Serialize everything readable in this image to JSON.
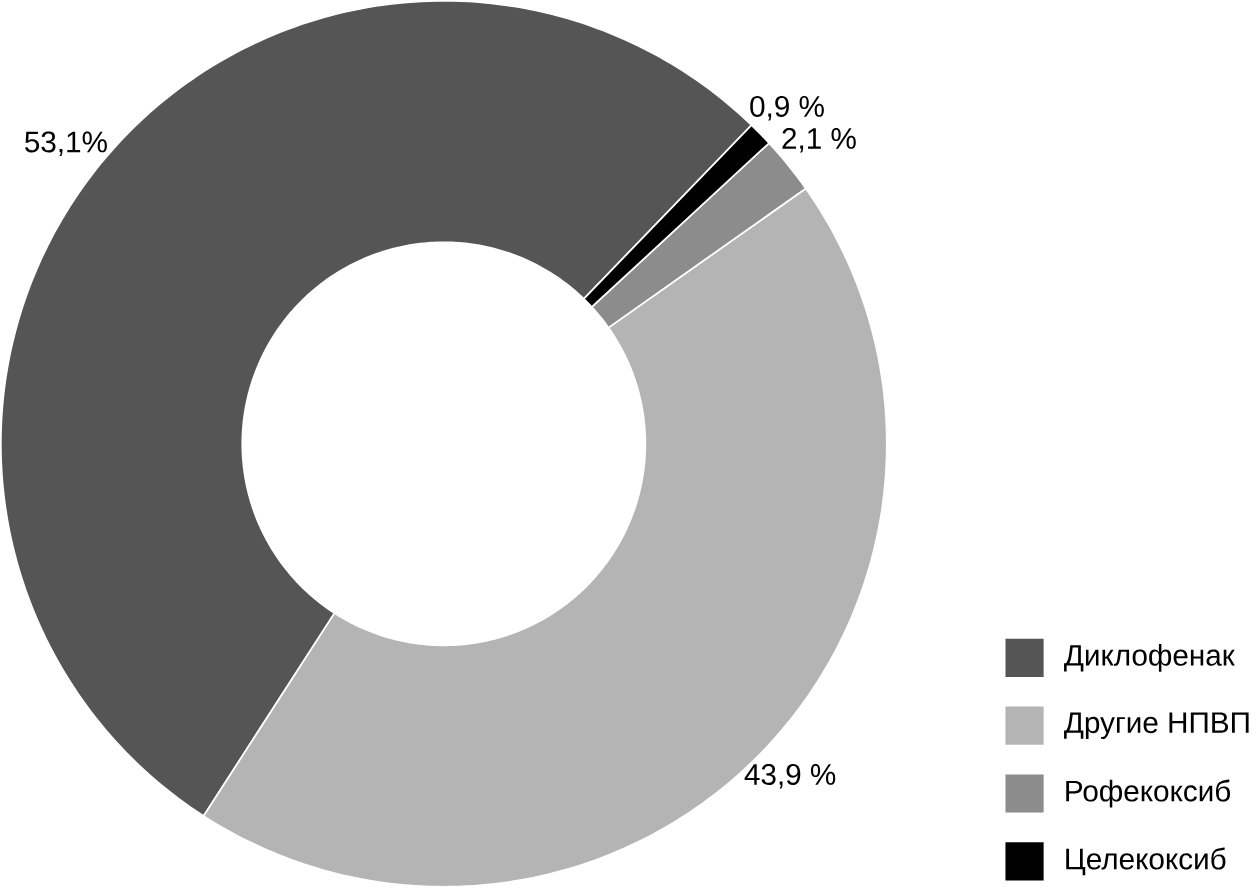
{
  "chart_data": {
    "type": "donut",
    "categories": [
      "Диклофенак",
      "Другие НПВП",
      "Рофекоксиб",
      "Целекоксиб"
    ],
    "values": [
      53.1,
      43.9,
      2.1,
      0.9
    ],
    "colors": [
      "#555555",
      "#b4b4b4",
      "#8c8c8c",
      "#000000"
    ],
    "value_labels": [
      "53,1%",
      "43,9 %",
      "2,1 %",
      "0,9 %"
    ],
    "legend": "bottom right"
  }
}
